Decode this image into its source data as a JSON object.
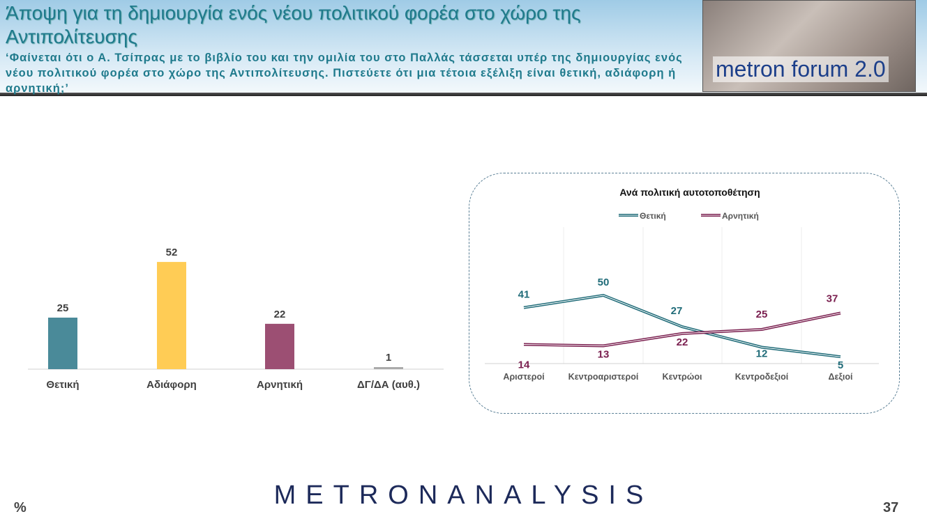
{
  "header": {
    "title": "Άποψη για τη δημιουργία ενός νέου πολιτικού φορέα στο χώρο της Αντιπολίτευσης",
    "question": "‘Φαίνεται ότι ο Α. Τσίπρας με το βιβλίο του και την ομιλία του στο Παλλάς τάσσεται υπέρ της δημιουργίας ενός νέου πολιτικού φορέα στο χώρο της Αντιπολίτευσης. Πιστεύετε ότι μια τέτοια εξέλιξη είναι θετική, αδιάφορη ή αρνητική;’",
    "logo_text": "metron forum 2.0"
  },
  "chart_data": [
    {
      "type": "bar",
      "title": "",
      "categories": [
        "Θετική",
        "Αδιάφορη",
        "Αρνητική",
        "ΔΓ/ΔΑ (αυθ.)"
      ],
      "values": [
        25,
        52,
        22,
        1
      ],
      "colors": [
        "#4a8a99",
        "#ffcc55",
        "#9c4f73",
        "#aaaaaa"
      ],
      "ylim": [
        0,
        60
      ],
      "grid": false
    },
    {
      "type": "line",
      "title": "Ανά πολιτική αυτοτοποθέτηση",
      "categories": [
        "Αριστεροί",
        "Κεντροαριστεροί",
        "Κεντρώοι",
        "Κεντροδεξιοί",
        "Δεξιοί"
      ],
      "series": [
        {
          "name": "Θετική",
          "values": [
            41,
            50,
            27,
            12,
            5
          ],
          "color": "#1f6b78"
        },
        {
          "name": "Αρνητική",
          "values": [
            14,
            13,
            22,
            25,
            37
          ],
          "color": "#7a1f4f"
        }
      ],
      "ylim": [
        0,
        55
      ],
      "legend": "top",
      "grid": "vertical"
    }
  ],
  "footer": {
    "brand": "METRONANALYSIS",
    "unit": "%",
    "page": "37"
  }
}
